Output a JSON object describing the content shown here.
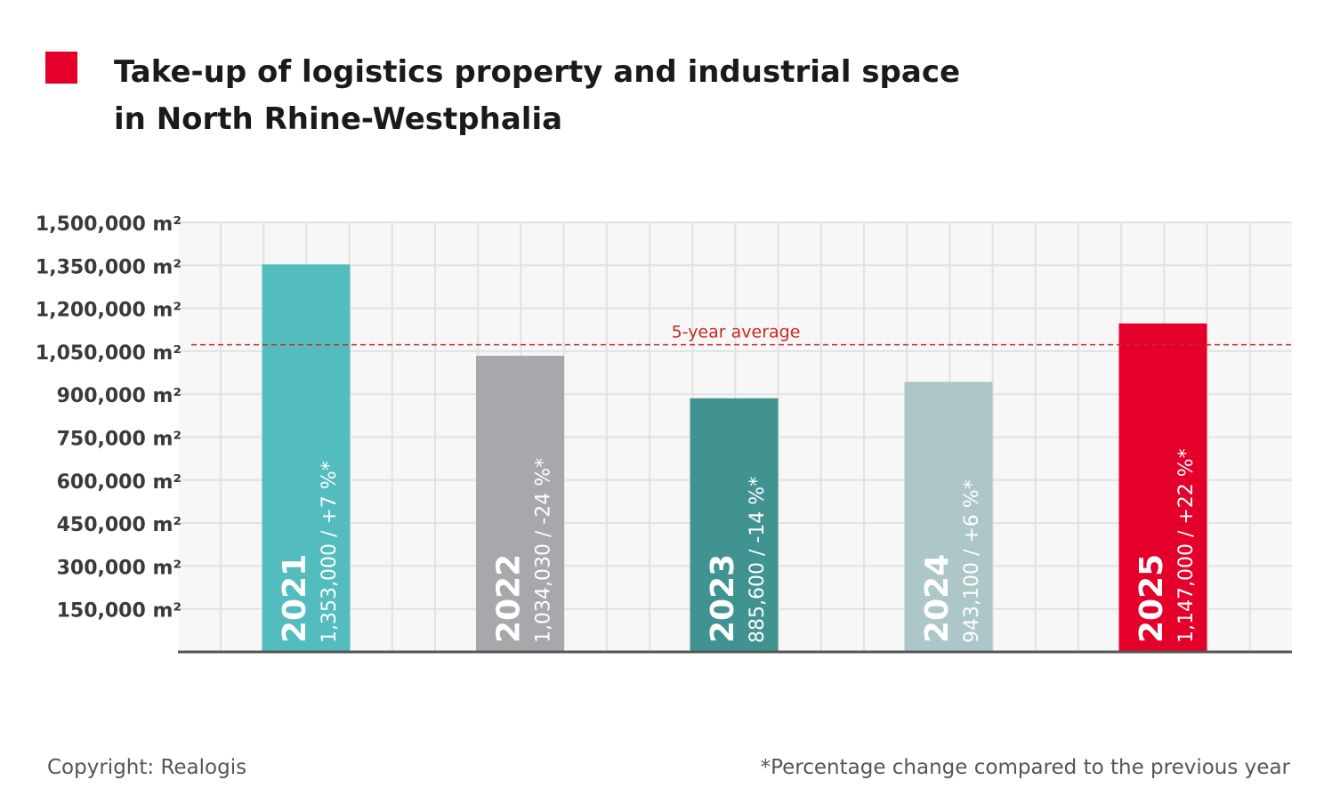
{
  "title_line1": "Take-up of logistics property and industrial space",
  "title_line2": "in North Rhine-Westphalia",
  "copyright": "Copyright: Realogis",
  "footnote": "*Percentage change compared to the previous year",
  "chart_data": {
    "type": "bar",
    "categories": [
      "2021",
      "2022",
      "2023",
      "2024",
      "2025"
    ],
    "values": [
      1353000,
      1034030,
      885600,
      943100,
      1147000
    ],
    "bar_labels": [
      "1,353,000 / +7 %*",
      "1,034,030 / -24 %*",
      "885,600 / -14 %*",
      "943,100 / +6 %*",
      "1,147,000 / +22 %*"
    ],
    "bar_colors": [
      "#52bcbf",
      "#a7a8ac",
      "#419392",
      "#adc6c7",
      "#e4002b"
    ],
    "yticks": [
      150000,
      300000,
      450000,
      600000,
      750000,
      900000,
      1050000,
      1200000,
      1350000,
      1500000
    ],
    "ytick_labels": [
      "150,000 m²",
      "300,000 m²",
      "450,000 m²",
      "600,000 m²",
      "750,000 m²",
      "900,000 m²",
      "1,050,000 m²",
      "1,200,000 m²",
      "1,350,000 m²",
      "1,500,000 m²"
    ],
    "ylim": [
      0,
      1500000
    ],
    "reference_line": {
      "label": "5-year average",
      "value": 1072546,
      "color": "#c62828"
    },
    "grid": true,
    "accent_color": "#e4002b"
  }
}
